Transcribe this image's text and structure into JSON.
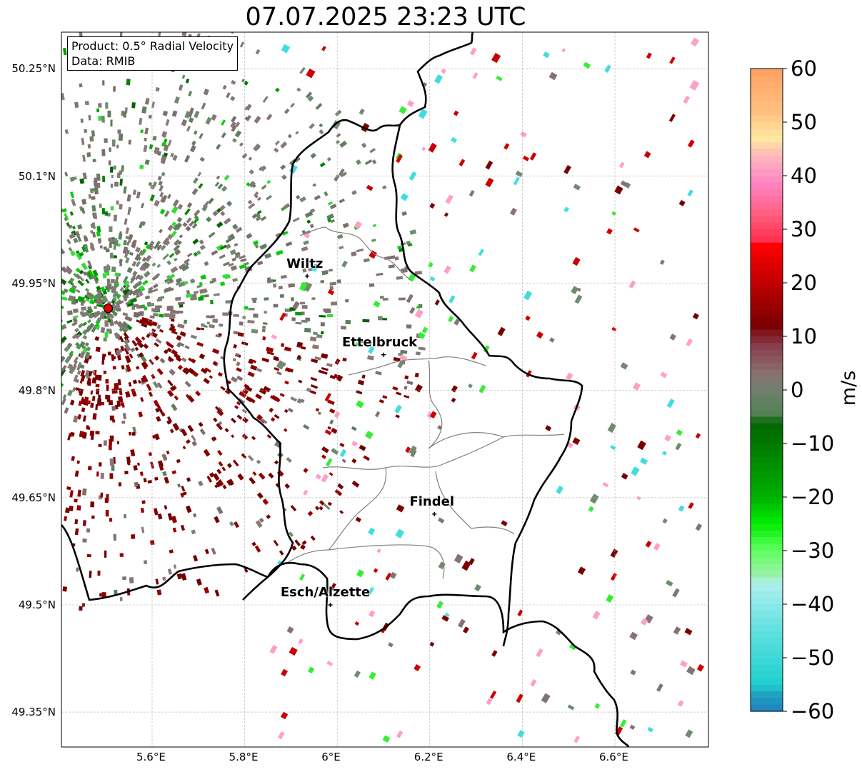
{
  "title": "07.07.2025 23:23 UTC",
  "info_box": {
    "product": "Product: 0.5° Radial Velocity",
    "data_source": "Data: RMIB"
  },
  "lon_ticks": [
    "5.6°E",
    "5.8°E",
    "6°E",
    "6.2°E",
    "6.4°E",
    "6.6°E"
  ],
  "lat_ticks": [
    "50.25°N",
    "50.1°N",
    "49.95°N",
    "49.8°N",
    "49.65°N",
    "49.5°N",
    "49.35°N"
  ],
  "cities": [
    {
      "name": "Wiltz",
      "lon": 5.935,
      "lat": 49.96
    },
    {
      "name": "Ettelbruck",
      "lon": 6.1,
      "lat": 49.85
    },
    {
      "name": "Findel",
      "lon": 6.21,
      "lat": 49.627
    },
    {
      "name": "Esch/Alzette",
      "lon": 5.985,
      "lat": 49.5
    }
  ],
  "radar_site": {
    "lon": 5.505,
    "lat": 49.915,
    "color": "#e00000"
  },
  "colorbar": {
    "unit": "m/s",
    "min": -60,
    "max": 60,
    "tick_labels": [
      "60",
      "50",
      "40",
      "30",
      "20",
      "10",
      "0",
      "−10",
      "−20",
      "−30",
      "−40",
      "−50",
      "−60"
    ],
    "tick_values": [
      60,
      50,
      40,
      30,
      20,
      10,
      0,
      -10,
      -20,
      -30,
      -40,
      -50,
      -60
    ],
    "color_stops": [
      {
        "v": 60,
        "c": "#ffa060"
      },
      {
        "v": 52,
        "c": "#ffc080"
      },
      {
        "v": 47,
        "c": "#ffe8a0"
      },
      {
        "v": 43,
        "c": "#ffb0c0"
      },
      {
        "v": 38,
        "c": "#ff80c0"
      },
      {
        "v": 33,
        "c": "#ff6080"
      },
      {
        "v": 28,
        "c": "#ff3050"
      },
      {
        "v": 27,
        "c": "#ff0000"
      },
      {
        "v": 20,
        "c": "#c00000"
      },
      {
        "v": 12,
        "c": "#7a0000"
      },
      {
        "v": 8,
        "c": "#8a4050"
      },
      {
        "v": 3,
        "c": "#8a7070"
      },
      {
        "v": 0,
        "c": "#708070"
      },
      {
        "v": -5,
        "c": "#508050"
      },
      {
        "v": -6,
        "c": "#006400"
      },
      {
        "v": -20,
        "c": "#00b000"
      },
      {
        "v": -25,
        "c": "#00ee00"
      },
      {
        "v": -30,
        "c": "#60ff60"
      },
      {
        "v": -35,
        "c": "#a0f0b0"
      },
      {
        "v": -36,
        "c": "#b0f0f0"
      },
      {
        "v": -45,
        "c": "#60e0e0"
      },
      {
        "v": -55,
        "c": "#20d0d0"
      },
      {
        "v": -57,
        "c": "#20a0c0"
      },
      {
        "v": -60,
        "c": "#2080c0"
      }
    ]
  },
  "grid": true
}
